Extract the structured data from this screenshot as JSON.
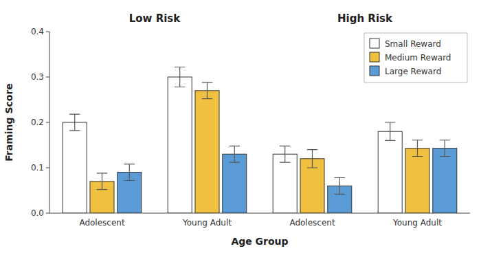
{
  "chart_data": {
    "type": "bar",
    "annotations": [
      "Low Risk",
      "High Risk"
    ],
    "x_label": "Age Group",
    "y_label": "Framing Score",
    "categories": [
      "Adolescent",
      "Young Adult",
      "Adolescent",
      "Young Adult"
    ],
    "series": [
      {
        "name": "Small Reward",
        "color": "#FFFFFF",
        "values": [
          0.2,
          0.3,
          0.13,
          0.18
        ],
        "errors": [
          0.018,
          0.022,
          0.018,
          0.02
        ]
      },
      {
        "name": "Medium Reward",
        "color": "#F0C040",
        "values": [
          0.07,
          0.27,
          0.12,
          0.143
        ],
        "errors": [
          0.018,
          0.018,
          0.02,
          0.018
        ]
      },
      {
        "name": "Large Reward",
        "color": "#5B9BD5",
        "values": [
          0.09,
          0.13,
          0.06,
          0.143
        ],
        "errors": [
          0.018,
          0.018,
          0.018,
          0.018
        ]
      }
    ],
    "ylim": [
      0,
      0.4
    ],
    "yticks": [
      {
        "value": 0.0,
        "label": "0.0"
      },
      0.1,
      0.2,
      0.3,
      0.4
    ],
    "grid": false,
    "legend": "upper right"
  }
}
